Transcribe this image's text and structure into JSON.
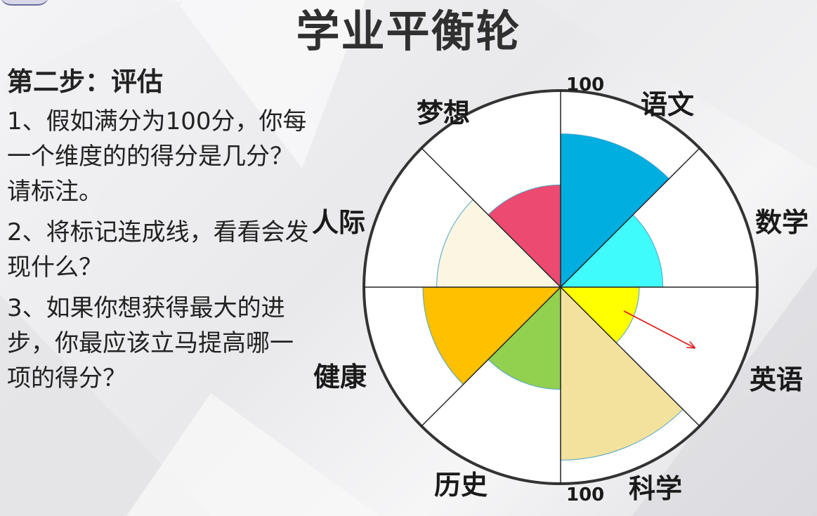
{
  "slide": {
    "title": "学业平衡轮",
    "step_heading": "第二步：评估",
    "instructions": [
      "1、假如满分为100分，你每一个维度的的得分是几分？请标注。",
      "2、将标记连成线，看看会发现什么？",
      "3、如果你想获得最大的进步，你最应该立马提高哪一项的得分？"
    ]
  },
  "wheel": {
    "max_score": 100,
    "scale_labels": {
      "top": "100",
      "bottom": "100"
    },
    "dimensions": [
      {
        "label": "语文",
        "score": 78,
        "color": "#00aee0"
      },
      {
        "label": "数学",
        "score": 52,
        "color": "#40fbfb"
      },
      {
        "label": "英语",
        "score": 40,
        "color": "#ffff00"
      },
      {
        "label": "科学",
        "score": 88,
        "color": "#f3e29e"
      },
      {
        "label": "历史",
        "score": 52,
        "color": "#92d050"
      },
      {
        "label": "健康",
        "score": 70,
        "color": "#ffc000"
      },
      {
        "label": "人际",
        "score": 63,
        "color": "#faf6e2"
      },
      {
        "label": "梦想",
        "score": 52,
        "color": "#ec4a70"
      }
    ],
    "arrow_color": "#e02020"
  }
}
